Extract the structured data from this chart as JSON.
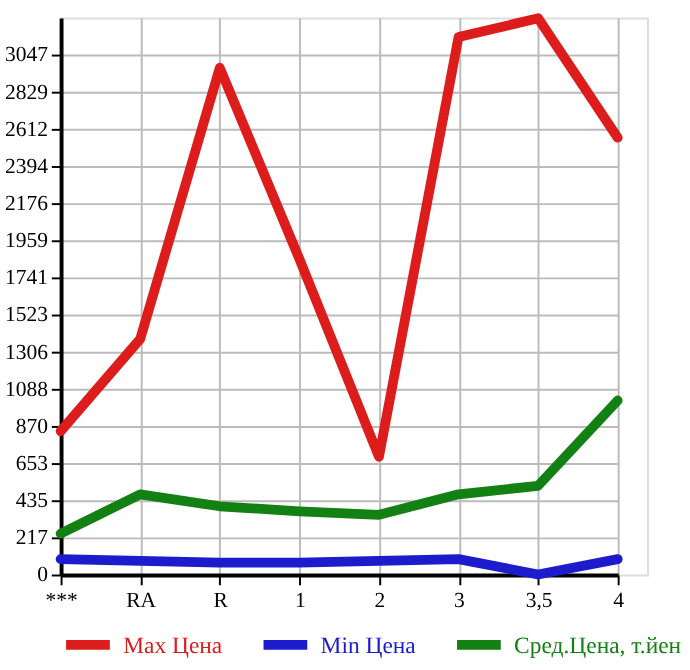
{
  "chart_data": {
    "type": "line",
    "categories": [
      "***",
      "RA",
      "R",
      "1",
      "2",
      "3",
      "3,5",
      "4"
    ],
    "series": [
      {
        "name": "Max Цена",
        "color": "#dd1c1c",
        "values": [
          840,
          1380,
          2970,
          1850,
          690,
          3150,
          3260,
          2560
        ]
      },
      {
        "name": "Min Цена",
        "color": "#1c1ccc",
        "values": [
          90,
          80,
          70,
          70,
          80,
          90,
          0,
          90
        ]
      },
      {
        "name": "Сред.Цена, т.йен",
        "color": "#138013",
        "values": [
          240,
          470,
          400,
          370,
          350,
          470,
          520,
          1020
        ]
      }
    ],
    "ylim": [
      0,
      3265
    ],
    "yticks": [
      0,
      217,
      435,
      653,
      870,
      1088,
      1306,
      1523,
      1741,
      1959,
      2176,
      2394,
      2612,
      2829,
      3047
    ],
    "grid": true,
    "legend": "bottom",
    "line_style": "solid",
    "marker": "none"
  }
}
